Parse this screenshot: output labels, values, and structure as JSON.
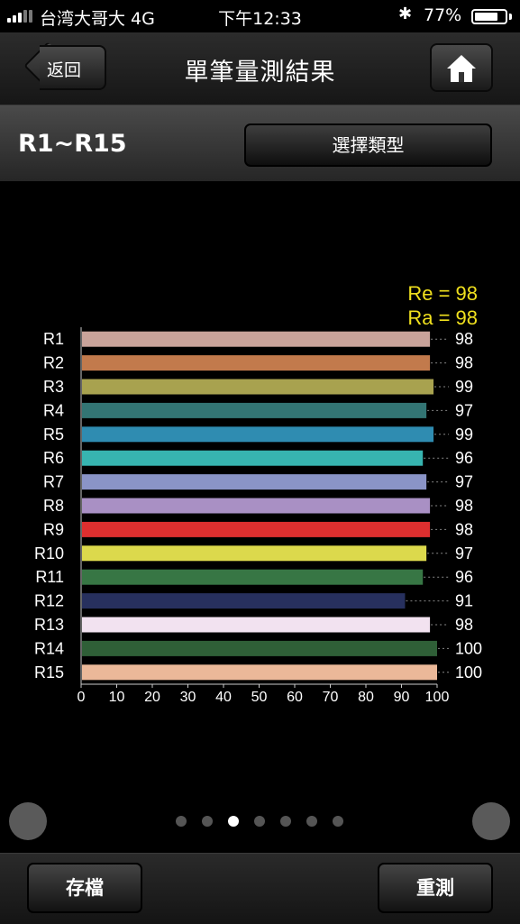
{
  "status": {
    "carrier": "台湾大哥大  4G",
    "time": "下午12:33",
    "battery": "77%",
    "battery_level": 0.77
  },
  "nav": {
    "back_label": "返回",
    "title": "單筆量測結果"
  },
  "subheader": {
    "range_label": "R1~R15",
    "type_button": "選擇類型"
  },
  "chart_data": {
    "type": "bar",
    "orientation": "horizontal",
    "categories": [
      "R1",
      "R2",
      "R3",
      "R4",
      "R5",
      "R6",
      "R7",
      "R8",
      "R9",
      "R10",
      "R11",
      "R12",
      "R13",
      "R14",
      "R15"
    ],
    "values": [
      98,
      98,
      99,
      97,
      99,
      96,
      97,
      98,
      98,
      97,
      96,
      91,
      98,
      100,
      100
    ],
    "value_labels": [
      "98",
      "98",
      "99",
      "97",
      "99",
      "96",
      "97",
      "98",
      "98",
      "97",
      "96",
      "91",
      "98",
      "100",
      "100"
    ],
    "colors": [
      "#c9a39a",
      "#c27a4c",
      "#a8a24f",
      "#337574",
      "#2f8cb1",
      "#37b4b0",
      "#8a94c7",
      "#a990c4",
      "#de2f2f",
      "#dcd94c",
      "#377644",
      "#27305e",
      "#f2e2f0",
      "#2f5f37",
      "#ebb899"
    ],
    "x_ticks": [
      "0",
      "10",
      "20",
      "30",
      "40",
      "50",
      "60",
      "70",
      "80",
      "90",
      "100"
    ],
    "xlim": [
      0,
      100
    ],
    "annotations": [
      "Re = 98",
      "Ra = 98"
    ]
  },
  "pager": {
    "count": 7,
    "active": 2
  },
  "bottom": {
    "save_label": "存檔",
    "remeasure_label": "重測"
  }
}
